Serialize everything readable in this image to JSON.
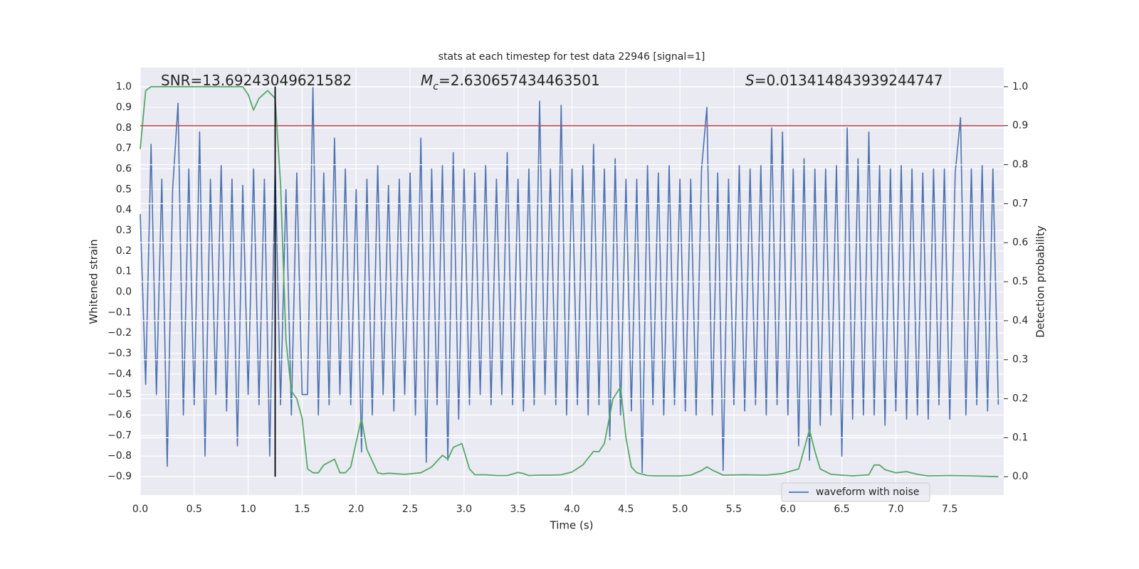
{
  "chart_data": {
    "type": "line",
    "title": "stats at each timestep for test data 22946 [signal=1]",
    "x_label": "Time (s)",
    "y_label": "Whitened strain",
    "y2_label": "Detection probability",
    "background": "#eaeaf2",
    "grid": true,
    "legend": "lower right",
    "annotations": [
      [
        "SNR=13.69243049621582"
      ],
      [
        "M",
        "c",
        "=2.630657434463501"
      ],
      [
        "S",
        "=0.013414843939244747"
      ]
    ],
    "xlim": [
      0,
      8.0
    ],
    "ylim": [
      -0.99,
      1.094
    ],
    "y2lim": [
      -0.047,
      1.049
    ],
    "xticks": [
      {
        "value": 0,
        "label": "0.0"
      },
      0.5,
      {
        "value": 1,
        "label": "1.0"
      },
      1.5,
      {
        "value": 2,
        "label": "2.0"
      },
      2.5,
      {
        "value": 3,
        "label": "3.0"
      },
      3.5,
      {
        "value": 4,
        "label": "4.0"
      },
      4.5,
      {
        "value": 5,
        "label": "5.0"
      },
      5.5,
      {
        "value": 6,
        "label": "6.0"
      },
      6.5,
      {
        "value": 7,
        "label": "7.0"
      },
      7.5
    ],
    "yticks": [
      {
        "value": -0.9,
        "label": "−0.9"
      },
      {
        "value": -0.8,
        "label": "−0.8"
      },
      {
        "value": -0.7,
        "label": "−0.7"
      },
      {
        "value": -0.6,
        "label": "−0.6"
      },
      {
        "value": -0.5,
        "label": "−0.5"
      },
      {
        "value": -0.4,
        "label": "−0.4"
      },
      {
        "value": -0.3,
        "label": "−0.3"
      },
      {
        "value": -0.2,
        "label": "−0.2"
      },
      {
        "value": -0.1,
        "label": "−0.1"
      },
      {
        "value": 0,
        "label": "0.0"
      },
      0.1,
      0.2,
      0.3,
      0.4,
      0.5,
      0.6,
      0.7,
      0.8,
      0.9,
      {
        "value": 1,
        "label": "1.0"
      }
    ],
    "y2ticks": [
      {
        "value": 0,
        "label": "0.0"
      },
      0.1,
      0.2,
      0.3,
      0.4,
      0.5,
      0.6,
      0.7,
      0.8,
      0.9,
      {
        "value": 1,
        "label": "1.0"
      }
    ],
    "series": [
      {
        "name": "waveform with noise",
        "color": "#4c72b0",
        "x": [
          0.0,
          0.05,
          0.1,
          0.15,
          0.2,
          0.25,
          0.3,
          0.35,
          0.4,
          0.45,
          0.5,
          0.55,
          0.6,
          0.65,
          0.7,
          0.75,
          0.8,
          0.85,
          0.9,
          0.95,
          1.0,
          1.05,
          1.1,
          1.15,
          1.2,
          1.25,
          1.3,
          1.35,
          1.4,
          1.45,
          1.5,
          1.55,
          1.6,
          1.65,
          1.7,
          1.75,
          1.8,
          1.85,
          1.9,
          1.95,
          2.0,
          2.05,
          2.1,
          2.15,
          2.2,
          2.25,
          2.3,
          2.35,
          2.4,
          2.45,
          2.5,
          2.55,
          2.6,
          2.65,
          2.7,
          2.75,
          2.8,
          2.85,
          2.9,
          2.95,
          3.0,
          3.05,
          3.1,
          3.15,
          3.2,
          3.25,
          3.3,
          3.35,
          3.4,
          3.45,
          3.5,
          3.55,
          3.6,
          3.65,
          3.7,
          3.75,
          3.8,
          3.85,
          3.9,
          3.95,
          4.0,
          4.05,
          4.1,
          4.15,
          4.2,
          4.25,
          4.3,
          4.35,
          4.4,
          4.45,
          4.5,
          4.55,
          4.6,
          4.65,
          4.7,
          4.75,
          4.8,
          4.85,
          4.9,
          4.95,
          5.0,
          5.05,
          5.1,
          5.15,
          5.2,
          5.25,
          5.3,
          5.35,
          5.4,
          5.45,
          5.5,
          5.55,
          5.6,
          5.65,
          5.7,
          5.75,
          5.8,
          5.85,
          5.9,
          5.95,
          6.0,
          6.05,
          6.1,
          6.15,
          6.2,
          6.25,
          6.3,
          6.35,
          6.4,
          6.45,
          6.5,
          6.55,
          6.6,
          6.65,
          6.7,
          6.75,
          6.8,
          6.85,
          6.9,
          6.95,
          7.0,
          7.05,
          7.1,
          7.15,
          7.2,
          7.25,
          7.3,
          7.35,
          7.4,
          7.45,
          7.5,
          7.55,
          7.6,
          7.65,
          7.7,
          7.75,
          7.8,
          7.85,
          7.9,
          7.95
        ],
        "values": [
          0.38,
          -0.45,
          0.72,
          -0.5,
          0.55,
          -0.85,
          0.5,
          0.92,
          -0.6,
          0.6,
          -0.55,
          0.78,
          -0.8,
          0.55,
          -0.5,
          0.62,
          -0.58,
          0.55,
          -0.75,
          0.52,
          -0.5,
          0.6,
          -0.55,
          0.55,
          -0.8,
          0.62,
          -0.55,
          0.5,
          -0.6,
          0.58,
          -0.5,
          -0.5,
          1.0,
          -0.6,
          0.58,
          -0.55,
          0.75,
          -0.5,
          0.6,
          -0.55,
          0.5,
          -0.78,
          0.55,
          -0.6,
          0.62,
          -0.5,
          0.52,
          -0.58,
          0.55,
          -0.5,
          0.58,
          -0.6,
          0.75,
          -0.83,
          0.6,
          -0.55,
          0.62,
          -0.82,
          0.68,
          -0.62,
          0.6,
          -0.55,
          0.58,
          -0.5,
          0.62,
          -0.55,
          0.55,
          -0.5,
          0.68,
          -0.55,
          0.55,
          -0.58,
          0.6,
          -0.55,
          0.93,
          -0.5,
          0.6,
          -0.55,
          0.91,
          -0.6,
          0.6,
          -0.55,
          0.62,
          -0.6,
          0.72,
          -0.55,
          0.6,
          -0.72,
          0.65,
          -0.6,
          0.55,
          -0.58,
          0.55,
          -0.88,
          0.62,
          -0.55,
          0.58,
          -0.6,
          0.62,
          -0.55,
          0.55,
          -0.58,
          0.55,
          -0.6,
          0.6,
          0.9,
          -0.6,
          0.58,
          -0.87,
          0.55,
          -0.55,
          0.62,
          -0.58,
          0.6,
          -0.55,
          0.62,
          -0.6,
          0.8,
          -0.55,
          0.78,
          -0.6,
          0.6,
          -0.75,
          0.65,
          -0.82,
          0.6,
          -0.65,
          0.6,
          -0.6,
          0.62,
          -0.8,
          0.8,
          -0.62,
          0.65,
          -0.6,
          0.78,
          -0.6,
          0.62,
          -0.65,
          0.6,
          -0.58,
          0.62,
          -0.62,
          0.6,
          -0.6,
          0.58,
          -0.62,
          0.6,
          -0.55,
          0.6,
          -0.62,
          0.58,
          0.85,
          -0.6,
          0.6,
          -0.55,
          0.62,
          -0.58,
          0.6,
          -0.55
        ]
      },
      {
        "color": "#55a868",
        "axis": "y2",
        "x": [
          0.0,
          0.05,
          0.1,
          0.2,
          0.5,
          0.9,
          0.95,
          1.0,
          1.05,
          1.1,
          1.18,
          1.25,
          1.3,
          1.35,
          1.4,
          1.45,
          1.5,
          1.55,
          1.6,
          1.65,
          1.7,
          1.8,
          1.85,
          1.9,
          1.95,
          2.05,
          2.1,
          2.2,
          2.25,
          2.3,
          2.45,
          2.6,
          2.7,
          2.8,
          2.85,
          2.9,
          2.98,
          3.05,
          3.1,
          3.2,
          3.3,
          3.4,
          3.5,
          3.55,
          3.6,
          3.7,
          3.8,
          3.9,
          4.0,
          4.1,
          4.2,
          4.25,
          4.3,
          4.38,
          4.45,
          4.5,
          4.55,
          4.6,
          4.7,
          4.8,
          5.0,
          5.1,
          5.2,
          5.25,
          5.3,
          5.4,
          5.6,
          5.8,
          5.95,
          6.1,
          6.15,
          6.2,
          6.25,
          6.3,
          6.4,
          6.6,
          6.75,
          6.8,
          6.85,
          6.9,
          7.0,
          7.1,
          7.2,
          7.3,
          7.5,
          7.7,
          7.95
        ],
        "values": [
          0.84,
          0.99,
          1.0,
          1.0,
          1.0,
          1.0,
          1.0,
          0.98,
          0.94,
          0.97,
          0.99,
          0.97,
          0.75,
          0.35,
          0.22,
          0.2,
          0.15,
          0.02,
          0.01,
          0.01,
          0.03,
          0.045,
          0.01,
          0.01,
          0.025,
          0.15,
          0.07,
          0.01,
          0.007,
          0.009,
          0.006,
          0.01,
          0.025,
          0.055,
          0.045,
          0.075,
          0.085,
          0.02,
          0.005,
          0.005,
          0.003,
          0.003,
          0.011,
          0.008,
          0.003,
          0.004,
          0.004,
          0.005,
          0.012,
          0.03,
          0.065,
          0.064,
          0.085,
          0.2,
          0.23,
          0.1,
          0.025,
          0.01,
          0.003,
          0.002,
          0.002,
          0.004,
          0.016,
          0.025,
          0.017,
          0.004,
          0.005,
          0.004,
          0.008,
          0.02,
          0.07,
          0.12,
          0.065,
          0.02,
          0.006,
          0.002,
          0.005,
          0.03,
          0.03,
          0.018,
          0.01,
          0.013,
          0.006,
          0.002,
          0.003,
          0.002,
          0.0
        ]
      }
    ],
    "hlines": [
      {
        "value": 0.9,
        "axis": "y2",
        "color": "#c44e52"
      }
    ],
    "vlines": [
      {
        "value": 1.25,
        "ymin": 0,
        "ymax": 1,
        "axis": "y2",
        "color": "#000000"
      }
    ]
  }
}
